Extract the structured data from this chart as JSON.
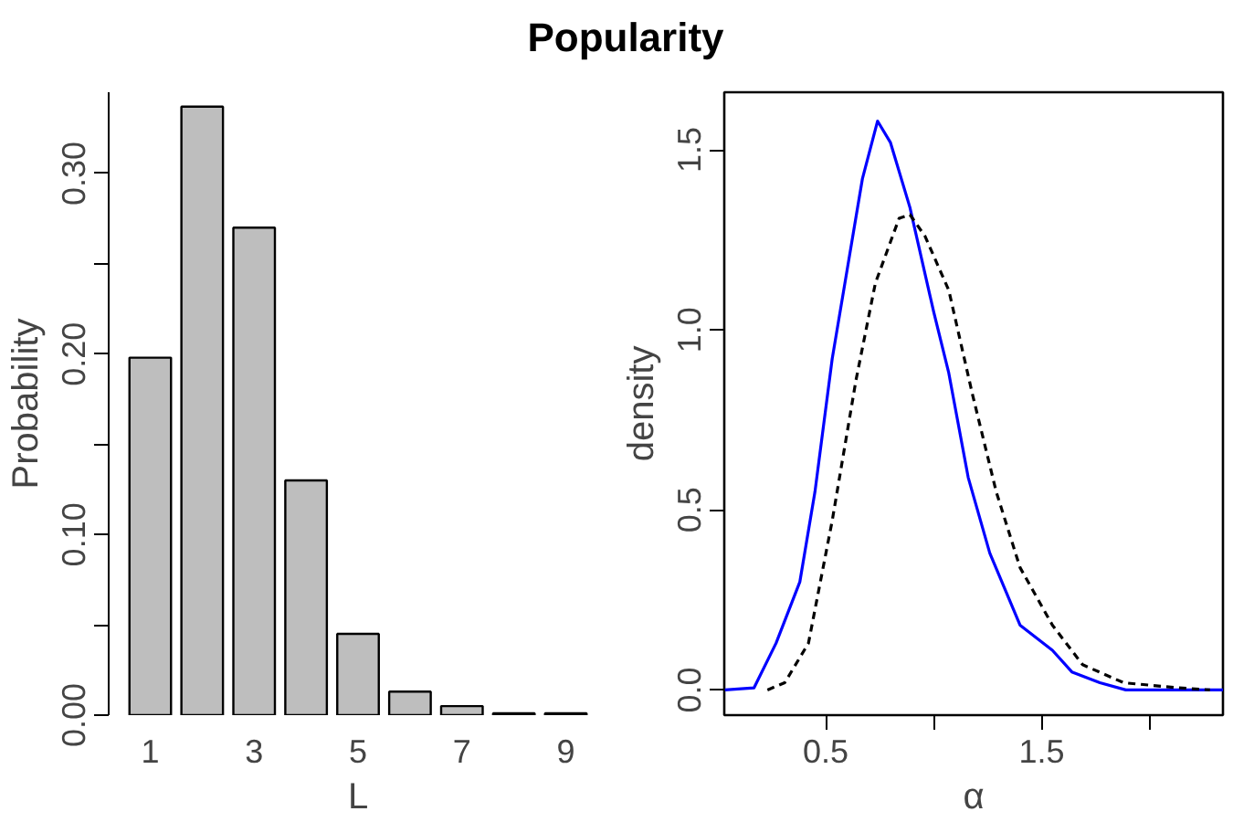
{
  "chart_data": [
    {
      "type": "bar",
      "title": "Popularity",
      "xlabel": "L",
      "ylabel": "Probability",
      "categories": [
        "1",
        null,
        "3",
        null,
        "5",
        null,
        "7",
        null,
        "9"
      ],
      "values": [
        0.198,
        0.337,
        0.27,
        0.13,
        0.045,
        0.013,
        0.005,
        0.001,
        0.001
      ],
      "color": "#bebebe",
      "ylim": [
        0,
        0.345
      ],
      "yticks": [
        {
          "value": 0,
          "label": "0.00"
        },
        {
          "value": 0.05,
          "label": null
        },
        {
          "value": 0.1,
          "label": "0.10"
        },
        {
          "value": 0.15,
          "label": null
        },
        {
          "value": 0.2,
          "label": "0.20"
        },
        {
          "value": 0.25,
          "label": null
        },
        {
          "value": 0.3,
          "label": "0.30"
        }
      ],
      "grid": false
    },
    {
      "type": "line",
      "xlabel": "α",
      "ylabel": "density",
      "xlim": [
        0.03,
        2.34
      ],
      "ylim": [
        -0.07,
        1.66
      ],
      "xticks": [
        0.5,
        {
          "value": 1.0,
          "label": null
        },
        1.5,
        {
          "value": 2.0,
          "label": null
        }
      ],
      "yticks": [
        {
          "value": 0,
          "label": "0.0"
        },
        0.5,
        {
          "value": 1,
          "label": "1.0"
        },
        1.5
      ],
      "grid": false,
      "series": [
        {
          "color": "#0000ff",
          "line_style": "solid",
          "x": [
            0.033,
            0.168,
            0.27,
            0.38,
            0.45,
            0.53,
            0.6,
            0.67,
            0.74,
            0.8,
            0.89,
            1.0,
            1.07,
            1.16,
            1.26,
            1.4,
            1.55,
            1.64,
            1.77,
            1.89,
            2.02,
            2.34
          ],
          "values": [
            0,
            0.006,
            0.13,
            0.3,
            0.55,
            0.92,
            1.17,
            1.42,
            1.58,
            1.52,
            1.34,
            1.05,
            0.88,
            0.59,
            0.38,
            0.18,
            0.11,
            0.05,
            0.02,
            0,
            0,
            0
          ]
        },
        {
          "color": "#000000",
          "line_style": "dashed",
          "x": [
            0.23,
            0.31,
            0.42,
            0.53,
            0.64,
            0.73,
            0.84,
            0.89,
            0.96,
            1.07,
            1.18,
            1.29,
            1.4,
            1.55,
            1.69,
            1.88,
            2.13,
            2.28
          ],
          "values": [
            0,
            0.02,
            0.13,
            0.47,
            0.86,
            1.13,
            1.31,
            1.32,
            1.26,
            1.11,
            0.82,
            0.55,
            0.34,
            0.18,
            0.07,
            0.02,
            0.006,
            0
          ]
        }
      ]
    }
  ]
}
